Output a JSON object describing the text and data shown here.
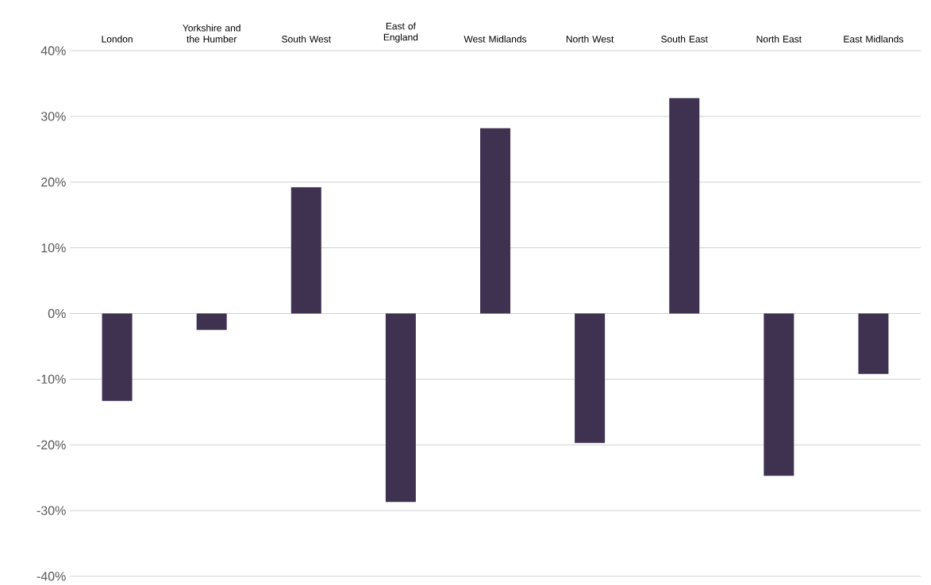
{
  "chart_data": {
    "type": "bar",
    "categories": [
      "London",
      "Yorkshire and the Humber",
      "South West",
      "East of England",
      "West Midlands",
      "North West",
      "South East",
      "North East",
      "East Midlands"
    ],
    "values": [
      -13.3,
      -2.5,
      19.2,
      -28.7,
      28.2,
      -19.7,
      32.8,
      -24.7,
      -9.2
    ],
    "color": "#3f3150",
    "ylim": [
      -40,
      40
    ],
    "yticks": [
      {
        "value": -40,
        "label": "-40%"
      },
      {
        "value": -30,
        "label": "-30%"
      },
      {
        "value": -20,
        "label": "-20%"
      },
      {
        "value": -10,
        "label": "-10%"
      },
      {
        "value": 0,
        "label": "0%"
      },
      {
        "value": 10,
        "label": "10%"
      },
      {
        "value": 20,
        "label": "20%"
      },
      {
        "value": 30,
        "label": "30%"
      },
      {
        "value": 40,
        "label": "40%"
      }
    ],
    "grid": "y"
  }
}
